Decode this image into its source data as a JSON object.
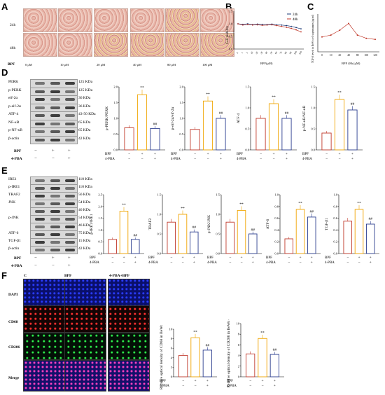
{
  "panels": [
    "A",
    "B",
    "C",
    "D",
    "E",
    "F"
  ],
  "A": {
    "rows": [
      "24h",
      "48h"
    ],
    "bpf_label": "BPF",
    "conc": [
      "0 μM",
      "10 μM",
      "20 μM",
      "40 μM",
      "80 μM",
      "100 μM"
    ]
  },
  "B": {
    "legend": [
      "24h",
      "48h"
    ],
    "ylabel": "Cell viability",
    "xlabel": "BPF(μM)",
    "colors": {
      "h24": "#1f3d7a",
      "h48": "#c0392b"
    },
    "chart_data": {
      "type": "line",
      "x": [
        0,
        1,
        5,
        10,
        20,
        30,
        40,
        50,
        60,
        70,
        80,
        90,
        100,
        120
      ],
      "series": [
        {
          "name": "24h",
          "values": [
            1.0,
            0.98,
            1.0,
            0.97,
            0.99,
            0.98,
            0.97,
            0.99,
            0.96,
            0.95,
            0.93,
            0.9,
            0.85,
            0.8
          ]
        },
        {
          "name": "48h",
          "values": [
            1.0,
            0.95,
            0.97,
            0.95,
            0.96,
            0.94,
            0.95,
            0.96,
            0.93,
            0.9,
            0.86,
            0.82,
            0.76,
            0.68
          ]
        }
      ],
      "ylim": [
        0,
        1.5
      ]
    }
  },
  "C": {
    "ylabel": "TGF-β levels in BeWo cell supernatants (pg/ml)",
    "xlabel": "BPF 48h (μM)",
    "xticks": [
      "0",
      "10",
      "20",
      "40",
      "80",
      "100",
      "120"
    ],
    "color": "#c0392b",
    "chart_data": {
      "type": "line",
      "x": [
        0,
        10,
        20,
        40,
        80,
        100,
        120
      ],
      "values": [
        0.55,
        0.62,
        0.8,
        1.05,
        0.62,
        0.5,
        0.46
      ],
      "ylim": [
        0,
        1.4
      ]
    }
  },
  "D": {
    "blots": [
      {
        "name": "PERK",
        "kda": "125 KDa"
      },
      {
        "name": "p-PERK",
        "kda": "125 KDa"
      },
      {
        "name": "eif-2α",
        "kda": "36 KDa"
      },
      {
        "name": "p-eif-2α",
        "kda": "36 KDa"
      },
      {
        "name": "ATF-4",
        "kda": "43-50 KDa"
      },
      {
        "name": "NF-κB",
        "kda": "65 KDa"
      },
      {
        "name": "p-NF-κB",
        "kda": "65 KDa"
      },
      {
        "name": "β-actin",
        "kda": "42 KDa"
      }
    ],
    "treat": {
      "bpf": "BPF",
      "pba": "4-PBA",
      "bpf_signs": [
        "−",
        "+",
        "+"
      ],
      "pba_signs": [
        "−",
        "−",
        "+"
      ]
    },
    "charts": [
      {
        "ylabel": "p-PERK/PERK",
        "values": [
          0.7,
          1.75,
          0.68
        ],
        "yticks": [
          "0.0",
          "0.5",
          "1.0",
          "1.5",
          "2.0"
        ],
        "ymax": 2.0,
        "sig": [
          "",
          "**",
          "##"
        ]
      },
      {
        "ylabel": "p-eif-2α/eif-2α",
        "values": [
          0.65,
          1.55,
          1.0
        ],
        "yticks": [
          "0.0",
          "0.5",
          "1.0",
          "1.5",
          "2.0"
        ],
        "ymax": 2.0,
        "sig": [
          "",
          "**",
          "##"
        ]
      },
      {
        "ylabel": "ATF-4",
        "values": [
          0.75,
          1.1,
          0.75
        ],
        "yticks": [
          "0.0",
          "0.5",
          "1.0",
          "1.5"
        ],
        "ymax": 1.5,
        "sig": [
          "",
          "**",
          "##"
        ]
      },
      {
        "ylabel": "p-NF-κB/NF-κB",
        "values": [
          0.4,
          1.2,
          0.95
        ],
        "yticks": [
          "0.0",
          "0.5",
          "1.0",
          "1.5"
        ],
        "ymax": 1.5,
        "sig": [
          "",
          "**",
          "##"
        ]
      }
    ]
  },
  "E": {
    "blots": [
      {
        "name": "IRE1",
        "kda": "110 KDa"
      },
      {
        "name": "p-IRE1",
        "kda": "110 KDa"
      },
      {
        "name": "TRAF2",
        "kda": "56 KDa"
      },
      {
        "name": "JNK",
        "kda": "54 KDa"
      },
      {
        "name": "",
        "kda": "46 KDa"
      },
      {
        "name": "p-JNK",
        "kda": "54 KDa"
      },
      {
        "name": "",
        "kda": "46 KDa"
      },
      {
        "name": "ATF-6",
        "kda": "75 KDa"
      },
      {
        "name": "TGF-β1",
        "kda": "15 KDa"
      },
      {
        "name": "β-actin",
        "kda": "42 KDa"
      }
    ],
    "treat": {
      "bpf": "BPF",
      "pba": "4-PBA",
      "bpf_signs": [
        "−",
        "+",
        "+"
      ],
      "pba_signs": [
        "−",
        "−",
        "+"
      ]
    },
    "charts": [
      {
        "ylabel": "p-IRE1/IRE1",
        "values": [
          0.6,
          1.8,
          0.6
        ],
        "yticks": [
          "0.0",
          "0.5",
          "1.0",
          "1.5",
          "2.0",
          "2.5"
        ],
        "ymax": 2.5,
        "sig": [
          "",
          "**",
          "##"
        ]
      },
      {
        "ylabel": "TRAF2",
        "values": [
          0.8,
          1.0,
          0.55
        ],
        "yticks": [
          "0.0",
          "0.5",
          "1.0",
          "1.5"
        ],
        "ymax": 1.5,
        "sig": [
          "",
          "**",
          "##"
        ]
      },
      {
        "ylabel": "p-JNK/JNK",
        "values": [
          0.8,
          1.1,
          0.5
        ],
        "yticks": [
          "0.0",
          "0.5",
          "1.0",
          "1.5"
        ],
        "ymax": 1.5,
        "sig": [
          "",
          "**",
          "##"
        ]
      },
      {
        "ylabel": "ATF-6",
        "values": [
          0.25,
          0.75,
          0.62
        ],
        "yticks": [
          "0.0",
          "0.2",
          "0.4",
          "0.6",
          "0.8",
          "1.0"
        ],
        "ymax": 1.0,
        "sig": [
          "",
          "**",
          "##"
        ]
      },
      {
        "ylabel": "TGF-β1",
        "values": [
          0.55,
          0.75,
          0.5
        ],
        "yticks": [
          "0.0",
          "0.2",
          "0.4",
          "0.6",
          "0.8",
          "1.0"
        ],
        "ymax": 1.0,
        "sig": [
          "",
          "**",
          "##"
        ]
      }
    ]
  },
  "F": {
    "cols": [
      "C",
      "BPF",
      "4-PBA+BPF"
    ],
    "rows": [
      "DAPI",
      "CD68",
      "CD206",
      "Merge"
    ],
    "charts": [
      {
        "ylabel": "Relative optical density of CD68 in BeWo cells",
        "values": [
          4.5,
          8.2,
          5.6
        ],
        "yticks": [
          "0",
          "2",
          "4",
          "6",
          "8",
          "10"
        ],
        "ymax": 10,
        "sig": [
          "",
          "**",
          "##"
        ]
      },
      {
        "ylabel": "Relative optical density of CD206 in BeWo cells",
        "values": [
          4.3,
          7.2,
          4.2
        ],
        "yticks": [
          "0",
          "2",
          "4",
          "6",
          "8",
          "10"
        ],
        "ymax": 10,
        "sig": [
          "",
          "**",
          "##"
        ]
      }
    ],
    "treat": {
      "bpf": "BPF",
      "pba": "4-PBA",
      "bpf_signs": [
        "−",
        "+",
        "+"
      ],
      "pba_signs": [
        "−",
        "−",
        "+"
      ]
    }
  },
  "bar_colors": [
    "#c0392b",
    "#f0a500",
    "#2c3e8f"
  ]
}
